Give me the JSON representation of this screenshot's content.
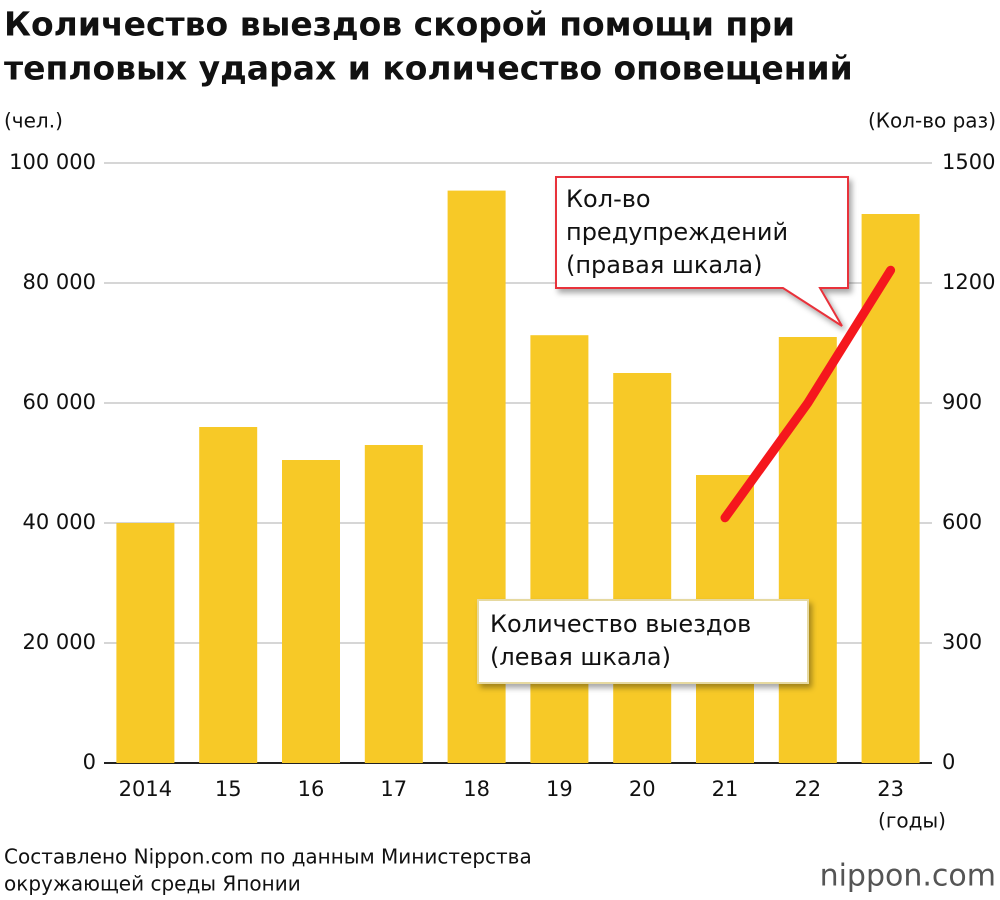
{
  "chart_data": {
    "type": "bar",
    "title": [
      "Количество выездов скорой помощи при",
      "тепловых ударах и количество оповещений"
    ],
    "y_label": "(чел.)",
    "y2_label": "(Кол-во раз)",
    "x_label": "(годы)",
    "categories": [
      "2014",
      "15",
      "16",
      "17",
      "18",
      "19",
      "20",
      "21",
      "22",
      "23"
    ],
    "series": [
      {
        "name": [
          "Количество выездов",
          "(левая шкала)"
        ],
        "type": "bar",
        "color": "#f7c927",
        "values": [
          40000,
          56000,
          50500,
          53000,
          95400,
          71300,
          65000,
          48000,
          71000,
          91500
        ]
      },
      {
        "name": [
          "Кол-во",
          "предупреждений",
          "(правая шкала)"
        ],
        "type": "line",
        "color": "#f5171d",
        "axis": "y2",
        "values": [
          null,
          null,
          null,
          null,
          null,
          null,
          null,
          613,
          900,
          1232
        ]
      }
    ],
    "ylim": [
      0,
      100000
    ],
    "yticks": [
      0,
      {
        "value": 20000,
        "label": "20 000"
      },
      {
        "value": 40000,
        "label": "40 000"
      },
      {
        "value": 60000,
        "label": "60 000"
      },
      {
        "value": 80000,
        "label": "80 000"
      },
      {
        "value": 100000,
        "label": "100 000"
      }
    ],
    "y2lim": [
      0,
      1500
    ],
    "y2ticks": [
      0,
      300,
      600,
      900,
      1200,
      1500
    ],
    "grid": true,
    "source": [
      "Составлено Nippon.com по данным Министерства",
      "окружающей среды Японии"
    ],
    "logo": "nippon.com"
  }
}
